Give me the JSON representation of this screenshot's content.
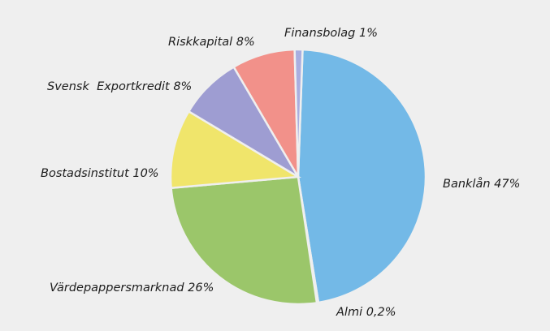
{
  "chart_data": {
    "type": "pie",
    "title": "",
    "start_angle_deg": 2,
    "direction": "clockwise",
    "slices": [
      {
        "label": "Banklån 47%",
        "value": 47,
        "color": "#73b9e7"
      },
      {
        "label": "Almi 0,2%",
        "value": 0.2,
        "color": "#a8cf70"
      },
      {
        "label": "Värdepappersmarknad 26%",
        "value": 26,
        "color": "#9bc66a"
      },
      {
        "label": "Bostadsinstitut 10%",
        "value": 10,
        "color": "#f0e56b"
      },
      {
        "label": "Svensk  Exportkredit 8%",
        "value": 8,
        "color": "#9e9dd2"
      },
      {
        "label": "Riskkapital 8%",
        "value": 8,
        "color": "#f2918a"
      },
      {
        "label": "Finansbolag 1%",
        "value": 1,
        "color": "#a9aee0"
      }
    ]
  }
}
